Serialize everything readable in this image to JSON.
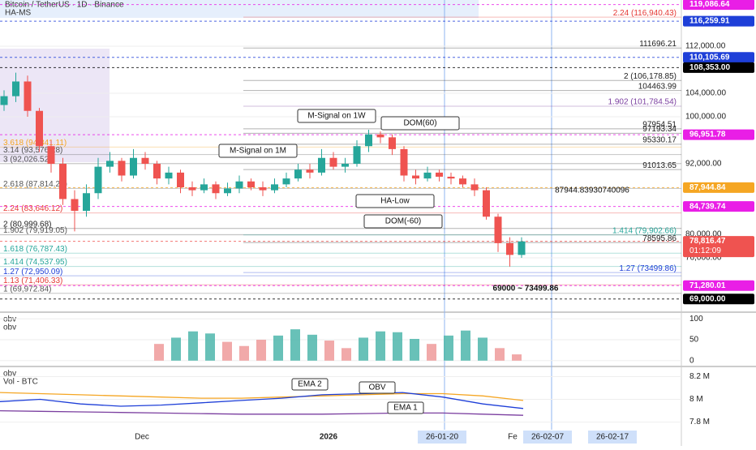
{
  "header": {
    "title": "Bitcoin / TetherUS · 1D · Binance",
    "indicator": "HA-MS"
  },
  "chart_data": [
    {
      "type": "candlestick",
      "ylim": [
        66760,
        119860
      ],
      "open": [
        102000,
        103500,
        106000,
        101000,
        95000,
        92000,
        86000,
        84000,
        87000,
        91500,
        92500,
        90000,
        93000,
        92000,
        89500,
        90500,
        88000,
        87500,
        88500,
        87000,
        87800,
        89000,
        88000,
        87500,
        88500,
        89500,
        91000,
        90500,
        93000,
        91500,
        92000,
        95000,
        97000,
        96500,
        94500,
        90000,
        89500,
        90500,
        89800,
        89500,
        88500,
        87500,
        83000,
        78500,
        76500
      ],
      "high": [
        104500,
        107500,
        107000,
        101500,
        96000,
        93000,
        87500,
        88500,
        93000,
        94000,
        93000,
        94500,
        94000,
        92500,
        91500,
        91000,
        89000,
        89500,
        89000,
        88800,
        90000,
        89500,
        89000,
        89500,
        90500,
        92000,
        92000,
        94500,
        94000,
        93000,
        96000,
        97800,
        97500,
        97000,
        95000,
        91000,
        91500,
        91000,
        90500,
        90000,
        89500,
        88000,
        83500,
        79500,
        79500
      ],
      "low": [
        101000,
        102500,
        100000,
        94000,
        90500,
        85000,
        80500,
        83000,
        86000,
        90500,
        89000,
        89500,
        91000,
        88500,
        88500,
        87000,
        86500,
        87000,
        86000,
        86500,
        87000,
        87500,
        86500,
        87000,
        88000,
        89000,
        89500,
        90000,
        91000,
        90500,
        91500,
        94000,
        95500,
        93500,
        89000,
        88500,
        89000,
        89000,
        88500,
        88000,
        86500,
        82500,
        77000,
        74500,
        76000
      ],
      "close": [
        103500,
        106000,
        101000,
        95000,
        92000,
        86000,
        84000,
        87000,
        91500,
        92500,
        90000,
        93000,
        92000,
        89500,
        90500,
        88000,
        87500,
        88500,
        87000,
        87800,
        89000,
        88000,
        87500,
        88500,
        89500,
        91000,
        90500,
        93000,
        91500,
        92000,
        95000,
        97000,
        96500,
        94500,
        90000,
        89500,
        90500,
        89800,
        89500,
        88500,
        87500,
        83000,
        78500,
        76500,
        78800
      ],
      "up_color": "#26a69a",
      "down_color": "#ef5350",
      "yticks": [
        {
          "value": 112000,
          "label": "112,000.00"
        },
        {
          "value": 104000,
          "label": "104,000.00"
        },
        {
          "value": 100000,
          "label": "100,000.00"
        },
        {
          "value": 92000,
          "label": "92,000.00"
        },
        {
          "value": 80000,
          "label": "80,000.00"
        },
        {
          "value": 76000,
          "label": "76,000.00"
        }
      ],
      "price_tags": [
        {
          "value": 119086.64,
          "label": "119,086.64",
          "color": "#e91ee6"
        },
        {
          "value": 116259.91,
          "label": "116,259.91",
          "color": "#1e3fd8"
        },
        {
          "value": 110105.69,
          "label": "110,105.69",
          "color": "#1e3fd8"
        },
        {
          "value": 108353,
          "label": "108,353.00",
          "color": "#000000"
        },
        {
          "value": 96951.78,
          "label": "96,951.78",
          "color": "#e91ee6"
        },
        {
          "value": 87944.84,
          "label": "87,944.84",
          "color": "#f5a623"
        },
        {
          "value": 84739.74,
          "label": "84,739.74",
          "color": "#e91ee6"
        },
        {
          "value": 78816.47,
          "label": "78,816.47",
          "color": "#ef5350",
          "countdown": "01:12:09"
        },
        {
          "value": 71280.01,
          "label": "71,280.01",
          "color": "#e91ee6"
        },
        {
          "value": 69000,
          "label": "69,000.00",
          "color": "#000000"
        }
      ],
      "levels_left": [
        {
          "label": "3.618 (94,841.11)",
          "value": 94841.11,
          "color": "#f5a623"
        },
        {
          "label": "3.14 (93,576.28)",
          "value": 93576.28,
          "color": "#555"
        },
        {
          "label": "3 (92,026.52)",
          "value": 92026.52,
          "color": "#555"
        },
        {
          "label": "2.618 (87,814.27)",
          "value": 87814.27,
          "color": "#555"
        },
        {
          "label": "2.24 (83,646.12)",
          "value": 83646.12,
          "color": "#e53935"
        },
        {
          "label": "2 (80,999.68)",
          "value": 80999.68,
          "color": "#222"
        },
        {
          "label": "1.902 (79,919.05)",
          "value": 79919.05,
          "color": "#555"
        },
        {
          "label": "1.618 (76,787.43)",
          "value": 76787.43,
          "color": "#26a69a"
        },
        {
          "label": "1.414 (74,537.95)",
          "value": 74537.95,
          "color": "#26a69a"
        },
        {
          "label": "1.27 (72,950.09)",
          "value": 72950.09,
          "color": "#1e3fd8"
        },
        {
          "label": "1.13 (71,406.33)",
          "value": 71406.33,
          "color": "#e53935"
        },
        {
          "label": "1 (69,972.84)",
          "value": 69972.84,
          "color": "#555"
        }
      ],
      "levels_right": [
        {
          "label": "2.24 (116,940.43)",
          "value": 116940.43,
          "color": "#e53935"
        },
        {
          "label": "111696.21",
          "value": 111696.21,
          "color": "#222"
        },
        {
          "label": "2 (106,178.85)",
          "value": 106178.85,
          "color": "#222"
        },
        {
          "label": "104463.99",
          "value": 104463.99,
          "color": "#222"
        },
        {
          "label": "1.902 (101,784.54)",
          "value": 101784.54,
          "color": "#7b3fa0"
        },
        {
          "label": "97954.51",
          "value": 97954.51,
          "color": "#222"
        },
        {
          "label": "97193.34",
          "value": 97193.34,
          "color": "#222"
        },
        {
          "label": "95330.17",
          "value": 95330.17,
          "color": "#222"
        },
        {
          "label": "91013.65",
          "value": 91013.65,
          "color": "#222"
        },
        {
          "label": "1.414 (79,902.66)",
          "value": 79902.66,
          "color": "#26a69a"
        },
        {
          "label": "78595.86",
          "value": 78595.86,
          "color": "#222"
        },
        {
          "label": "1.27 (73499.86)",
          "value": 73499.86,
          "color": "#1e3fd8"
        }
      ],
      "annotations": [
        "M-Signal on 1W",
        "M-Signal on 1M",
        "DOM(60)",
        "HA-Low",
        "DOM(-60)",
        "69000 ~ 73499.86",
        "87944.83930740096"
      ]
    },
    {
      "type": "bar",
      "title": "obv",
      "subtitle": "obv",
      "ylim": [
        -14,
        116
      ],
      "yticks": [
        0,
        50,
        100
      ],
      "values": [
        40,
        55,
        70,
        65,
        45,
        35,
        50,
        60,
        75,
        62,
        48,
        30,
        55,
        70,
        68,
        52,
        40,
        60,
        72,
        55,
        30,
        15
      ]
    },
    {
      "type": "line",
      "title": "obv",
      "subtitle": "Vol - BTC",
      "ylim": [
        7733000,
        8289000
      ],
      "yticks": [
        {
          "value": 8200000,
          "label": "8.2 M"
        },
        {
          "value": 8000000,
          "label": "8 M"
        },
        {
          "value": 7800000,
          "label": "7.8 M"
        }
      ],
      "series": [
        {
          "name": "EMA 2",
          "color": "#f5a623",
          "values": [
            8060000,
            8050000,
            8040000,
            8030000,
            8020000,
            8010000,
            8010000,
            8020000,
            8030000,
            8040000,
            8050000,
            8050000,
            8030000,
            7990000
          ]
        },
        {
          "name": "OBV",
          "color": "#1e3fd8",
          "values": [
            7980000,
            8000000,
            7960000,
            7940000,
            7950000,
            7970000,
            7990000,
            8010000,
            8040000,
            8050000,
            8060000,
            8020000,
            7960000,
            7920000
          ]
        },
        {
          "name": "EMA 1",
          "color": "#7b3fa0",
          "values": [
            7900000,
            7895000,
            7890000,
            7885000,
            7880000,
            7875000,
            7870000,
            7870000,
            7870000,
            7875000,
            7880000,
            7880000,
            7870000,
            7860000
          ]
        }
      ]
    }
  ],
  "time_axis": [
    "Dec",
    "2026",
    "26-01-20",
    "Fe",
    "26-02-07",
    "26-02-17"
  ]
}
